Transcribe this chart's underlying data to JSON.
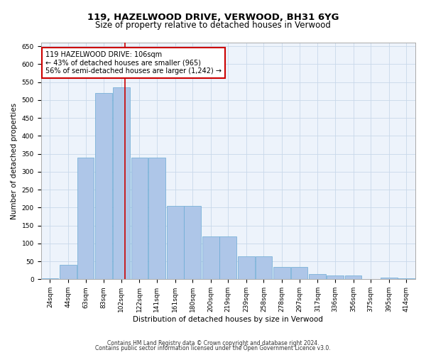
{
  "title": "119, HAZELWOOD DRIVE, VERWOOD, BH31 6YG",
  "subtitle": "Size of property relative to detached houses in Verwood",
  "xlabel": "Distribution of detached houses by size in Verwood",
  "ylabel": "Number of detached properties",
  "categories": [
    "24sqm",
    "44sqm",
    "63sqm",
    "83sqm",
    "102sqm",
    "122sqm",
    "141sqm",
    "161sqm",
    "180sqm",
    "200sqm",
    "219sqm",
    "239sqm",
    "258sqm",
    "278sqm",
    "297sqm",
    "317sqm",
    "336sqm",
    "356sqm",
    "375sqm",
    "395sqm",
    "414sqm"
  ],
  "bar_color": "#aec6e8",
  "bar_edge_color": "#6aaad4",
  "annotation_text_line1": "119 HAZELWOOD DRIVE: 106sqm",
  "annotation_text_line2": "← 43% of detached houses are smaller (965)",
  "annotation_text_line3": "56% of semi-detached houses are larger (1,242) →",
  "annotation_box_facecolor": "#ffffff",
  "annotation_box_edgecolor": "#cc0000",
  "vline_color": "#cc0000",
  "grid_color": "#c8d8ea",
  "background_color": "#edf3fb",
  "bar_heights": [
    3,
    40,
    340,
    520,
    535,
    340,
    340,
    205,
    205,
    120,
    120,
    65,
    65,
    35,
    35,
    15,
    10,
    10,
    0,
    4,
    3
  ],
  "bin_centers": [
    24,
    44,
    63,
    83,
    102,
    122,
    141,
    161,
    180,
    200,
    219,
    239,
    258,
    278,
    297,
    317,
    336,
    356,
    375,
    395,
    414
  ],
  "bin_width": 19,
  "vline_x": 106,
  "ylim": [
    0,
    660
  ],
  "xlim": [
    14,
    424
  ],
  "yticks": [
    0,
    50,
    100,
    150,
    200,
    250,
    300,
    350,
    400,
    450,
    500,
    550,
    600,
    650
  ],
  "footer_line1": "Contains HM Land Registry data © Crown copyright and database right 2024.",
  "footer_line2": "Contains public sector information licensed under the Open Government Licence v3.0.",
  "title_fontsize": 9.5,
  "subtitle_fontsize": 8.5,
  "tick_fontsize": 6.5,
  "ylabel_fontsize": 7.5,
  "xlabel_fontsize": 7.5,
  "annotation_fontsize": 7.0,
  "footer_fontsize": 5.5
}
